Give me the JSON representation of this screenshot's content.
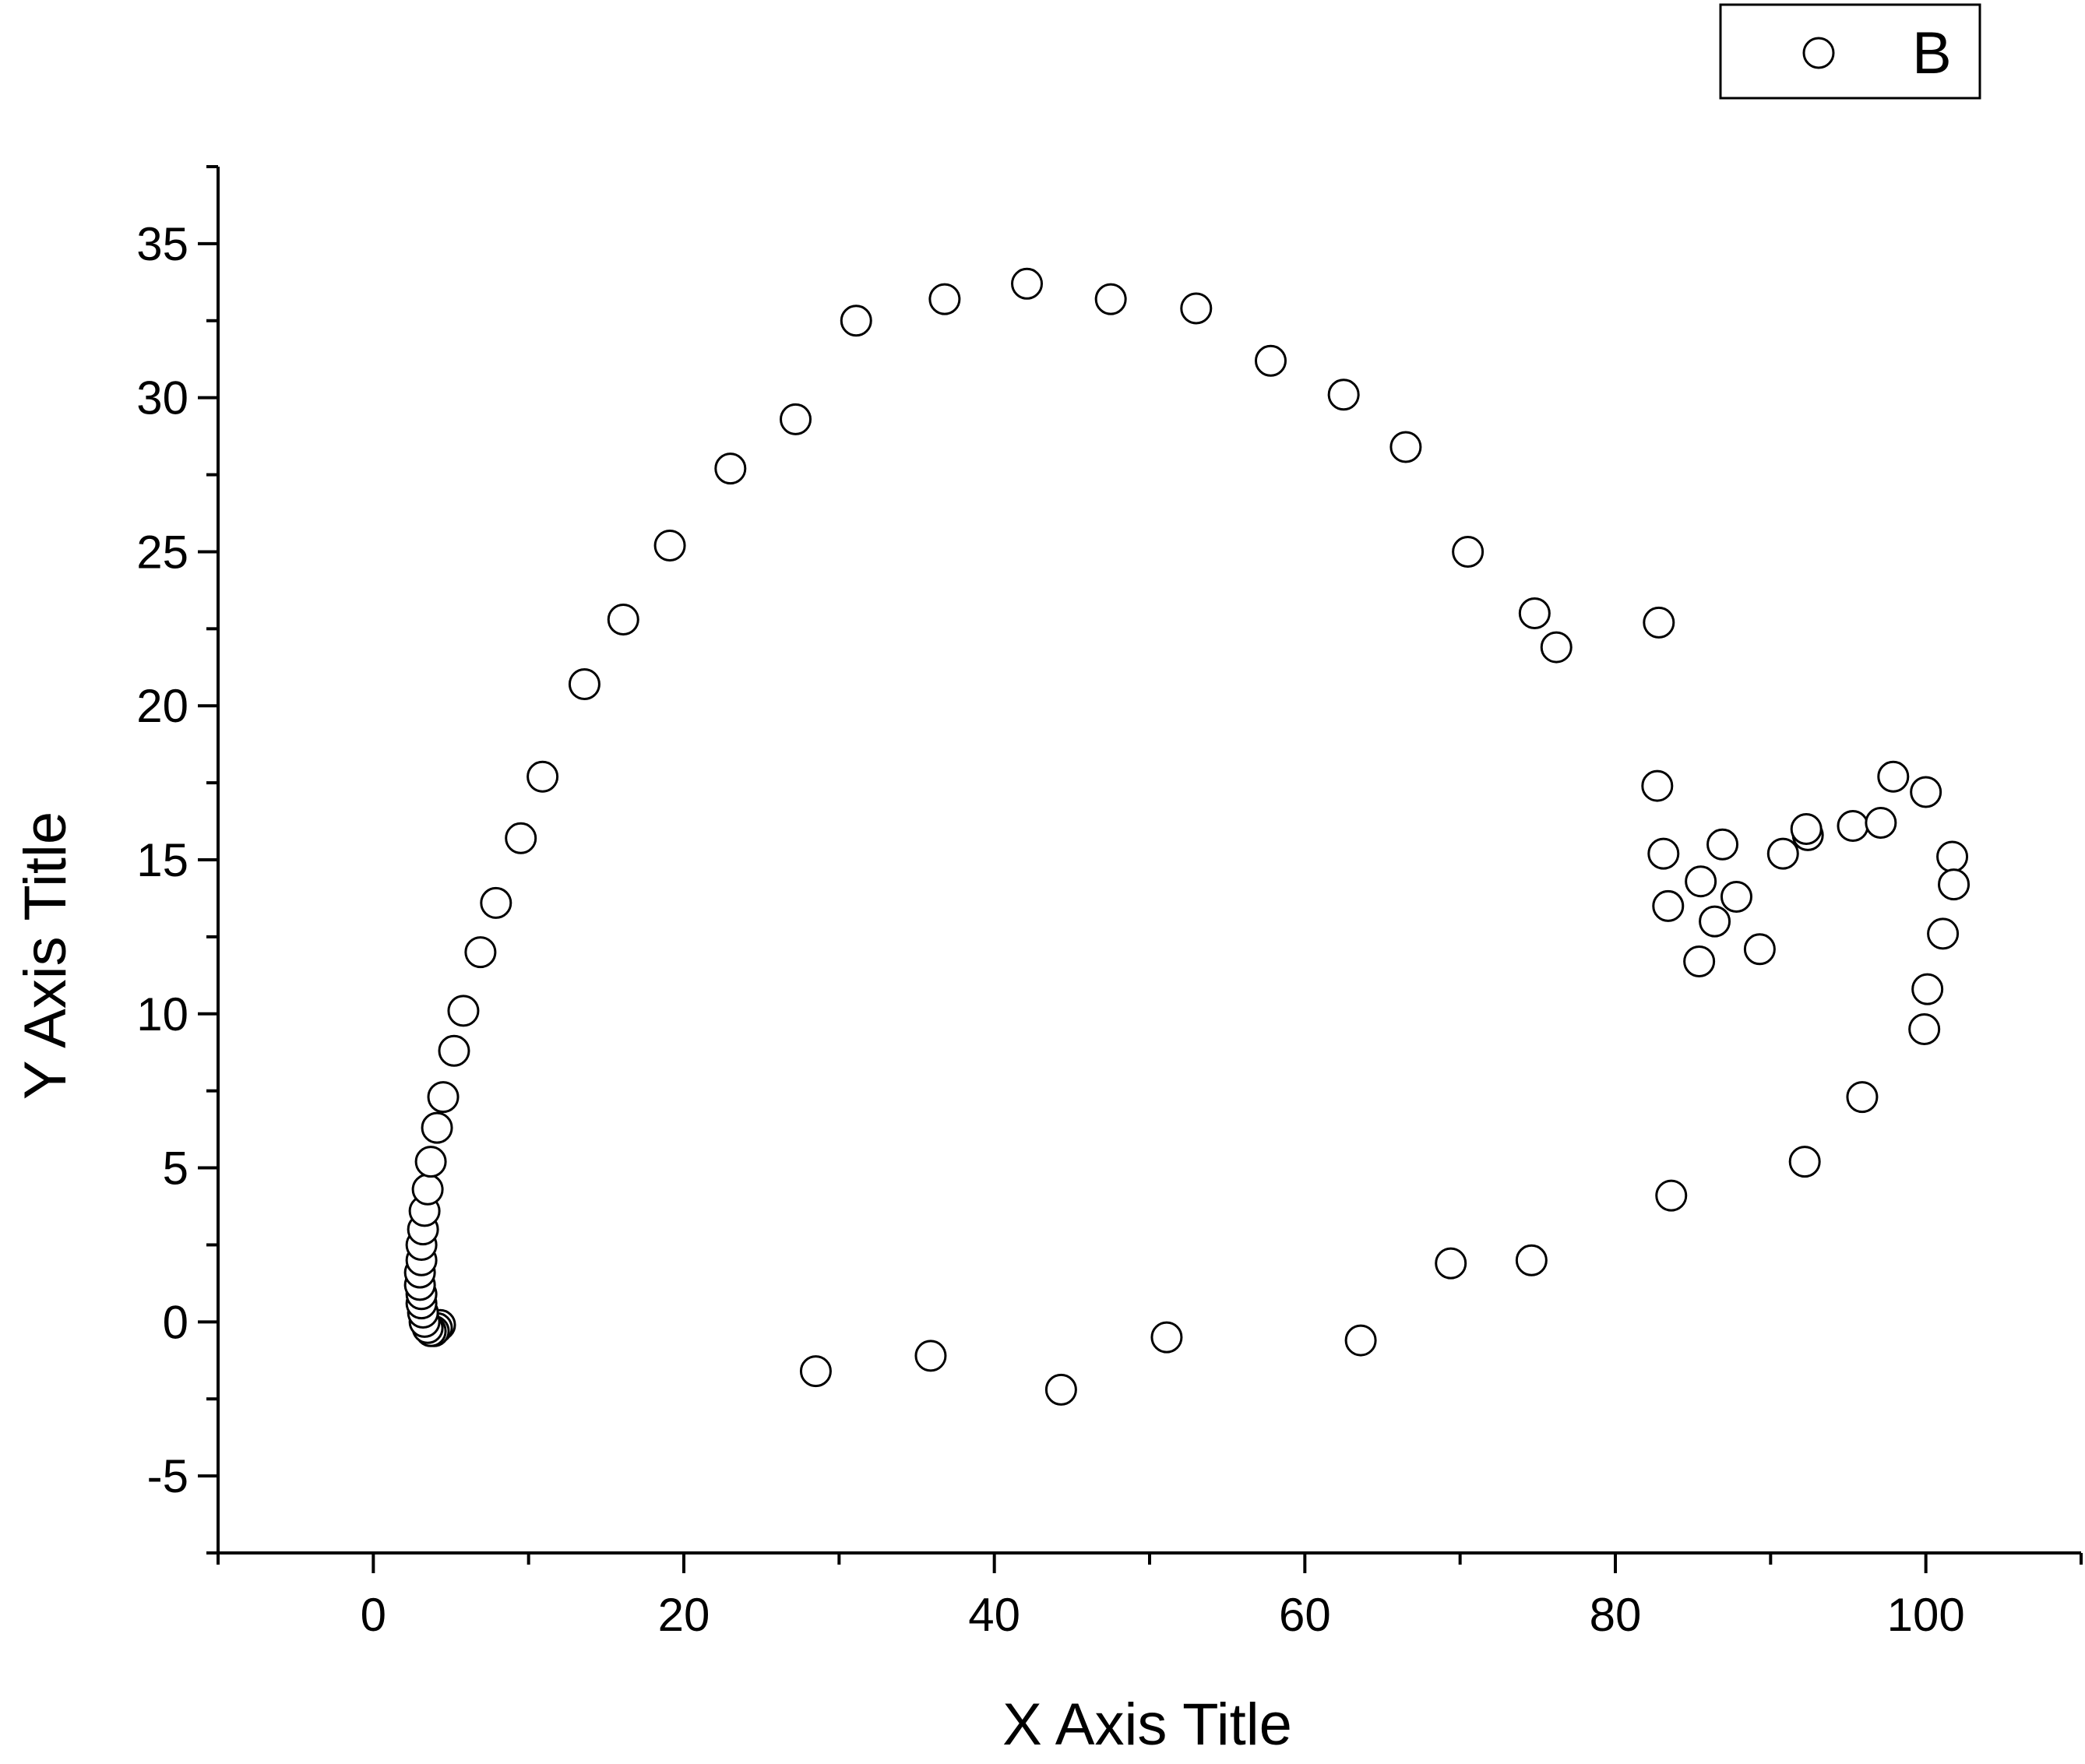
{
  "chart_data": {
    "type": "scatter",
    "title": "",
    "xlabel": "X Axis Title",
    "ylabel": "Y Axis Title",
    "xlim": [
      -10,
      110
    ],
    "ylim": [
      -7.5,
      37.5
    ],
    "x_ticks": [
      0,
      20,
      40,
      60,
      80,
      100
    ],
    "y_ticks": [
      -5,
      0,
      5,
      10,
      15,
      20,
      25,
      30,
      35
    ],
    "x_tick_labels": [
      "0",
      "20",
      "40",
      "60",
      "80",
      "100"
    ],
    "y_tick_labels": [
      "-5",
      "0",
      "5",
      "10",
      "15",
      "20",
      "25",
      "30",
      "35"
    ],
    "grid": false,
    "legend": {
      "position": "top-right",
      "entries": [
        "B"
      ]
    },
    "marker": {
      "shape": "open-circle",
      "stroke": "#000000",
      "fill": "#ffffff"
    },
    "series": [
      {
        "name": "B",
        "points": [
          [
            4.3,
            -0.1
          ],
          [
            4.1,
            -0.2
          ],
          [
            3.9,
            -0.3
          ],
          [
            3.7,
            -0.3
          ],
          [
            3.5,
            -0.2
          ],
          [
            3.3,
            0.0
          ],
          [
            3.2,
            0.3
          ],
          [
            3.1,
            0.6
          ],
          [
            3.1,
            0.9
          ],
          [
            3.0,
            1.2
          ],
          [
            3.0,
            1.6
          ],
          [
            3.1,
            2.0
          ],
          [
            3.1,
            2.5
          ],
          [
            3.2,
            3.0
          ],
          [
            3.3,
            3.6
          ],
          [
            3.5,
            4.3
          ],
          [
            3.7,
            5.2
          ],
          [
            4.1,
            6.3
          ],
          [
            4.5,
            7.3
          ],
          [
            5.2,
            8.8
          ],
          [
            5.8,
            10.1
          ],
          [
            6.9,
            12.0
          ],
          [
            7.9,
            13.6
          ],
          [
            9.5,
            15.7
          ],
          [
            10.9,
            17.7
          ],
          [
            13.6,
            20.7
          ],
          [
            16.1,
            22.8
          ],
          [
            19.1,
            25.2
          ],
          [
            23.0,
            27.7
          ],
          [
            27.2,
            29.3
          ],
          [
            31.1,
            32.5
          ],
          [
            36.8,
            33.2
          ],
          [
            42.1,
            33.7
          ],
          [
            47.5,
            33.2
          ],
          [
            53.0,
            32.9
          ],
          [
            57.8,
            31.2
          ],
          [
            62.5,
            30.1
          ],
          [
            66.5,
            28.4
          ],
          [
            70.5,
            25.0
          ],
          [
            74.8,
            23.0
          ],
          [
            76.2,
            21.9
          ],
          [
            82.8,
            22.7
          ],
          [
            82.7,
            17.4
          ],
          [
            83.1,
            15.2
          ],
          [
            83.4,
            13.5
          ],
          [
            85.4,
            11.7
          ],
          [
            85.5,
            14.3
          ],
          [
            86.4,
            13.0
          ],
          [
            86.9,
            15.5
          ],
          [
            87.8,
            13.8
          ],
          [
            89.3,
            12.1
          ],
          [
            90.8,
            15.2
          ],
          [
            92.4,
            15.8
          ],
          [
            92.3,
            16.0
          ],
          [
            95.3,
            16.1
          ],
          [
            97.1,
            16.2
          ],
          [
            97.9,
            17.7
          ],
          [
            100.0,
            17.2
          ],
          [
            101.7,
            15.1
          ],
          [
            101.8,
            14.2
          ],
          [
            101.1,
            12.6
          ],
          [
            100.1,
            10.8
          ],
          [
            99.9,
            9.5
          ],
          [
            95.9,
            7.3
          ],
          [
            92.2,
            5.2
          ],
          [
            83.6,
            4.1
          ],
          [
            74.6,
            2.0
          ],
          [
            69.4,
            1.9
          ],
          [
            63.6,
            -0.6
          ],
          [
            51.1,
            -0.5
          ],
          [
            44.3,
            -2.2
          ],
          [
            35.9,
            -1.1
          ],
          [
            28.5,
            -1.6
          ]
        ]
      }
    ]
  }
}
